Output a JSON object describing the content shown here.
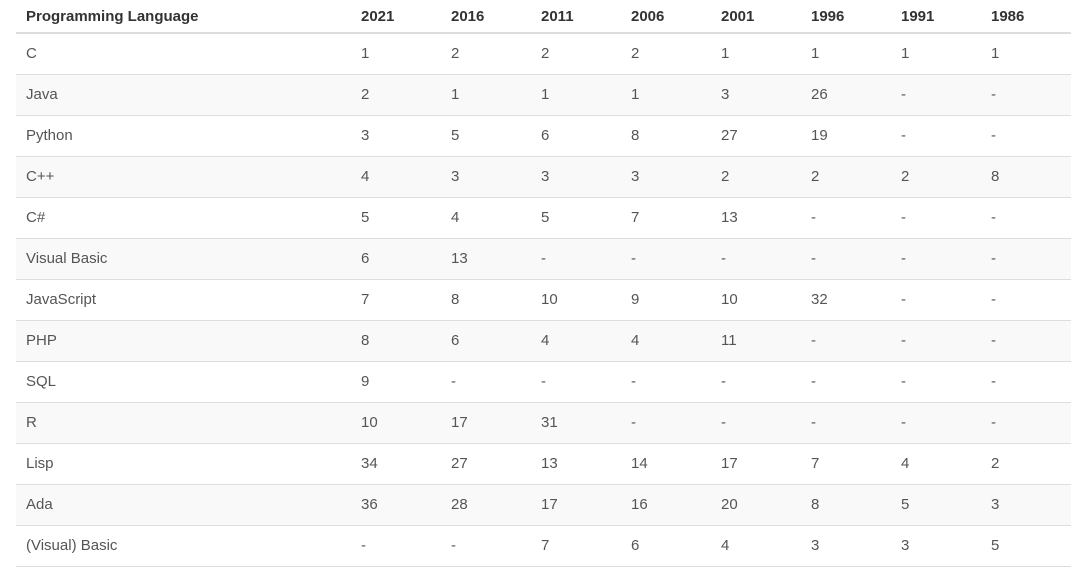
{
  "table": {
    "headers": [
      "Programming Language",
      "2021",
      "2016",
      "2011",
      "2006",
      "2001",
      "1996",
      "1991",
      "1986"
    ],
    "rows": [
      [
        "C",
        "1",
        "2",
        "2",
        "2",
        "1",
        "1",
        "1",
        "1"
      ],
      [
        "Java",
        "2",
        "1",
        "1",
        "1",
        "3",
        "26",
        "-",
        "-"
      ],
      [
        "Python",
        "3",
        "5",
        "6",
        "8",
        "27",
        "19",
        "-",
        "-"
      ],
      [
        "C++",
        "4",
        "3",
        "3",
        "3",
        "2",
        "2",
        "2",
        "8"
      ],
      [
        "C#",
        "5",
        "4",
        "5",
        "7",
        "13",
        "-",
        "-",
        "-"
      ],
      [
        "Visual Basic",
        "6",
        "13",
        "-",
        "-",
        "-",
        "-",
        "-",
        "-"
      ],
      [
        "JavaScript",
        "7",
        "8",
        "10",
        "9",
        "10",
        "32",
        "-",
        "-"
      ],
      [
        "PHP",
        "8",
        "6",
        "4",
        "4",
        "11",
        "-",
        "-",
        "-"
      ],
      [
        "SQL",
        "9",
        "-",
        "-",
        "-",
        "-",
        "-",
        "-",
        "-"
      ],
      [
        "R",
        "10",
        "17",
        "31",
        "-",
        "-",
        "-",
        "-",
        "-"
      ],
      [
        "Lisp",
        "34",
        "27",
        "13",
        "14",
        "17",
        "7",
        "4",
        "2"
      ],
      [
        "Ada",
        "36",
        "28",
        "17",
        "16",
        "20",
        "8",
        "5",
        "3"
      ],
      [
        "(Visual) Basic",
        "-",
        "-",
        "7",
        "6",
        "4",
        "3",
        "3",
        "5"
      ]
    ]
  }
}
